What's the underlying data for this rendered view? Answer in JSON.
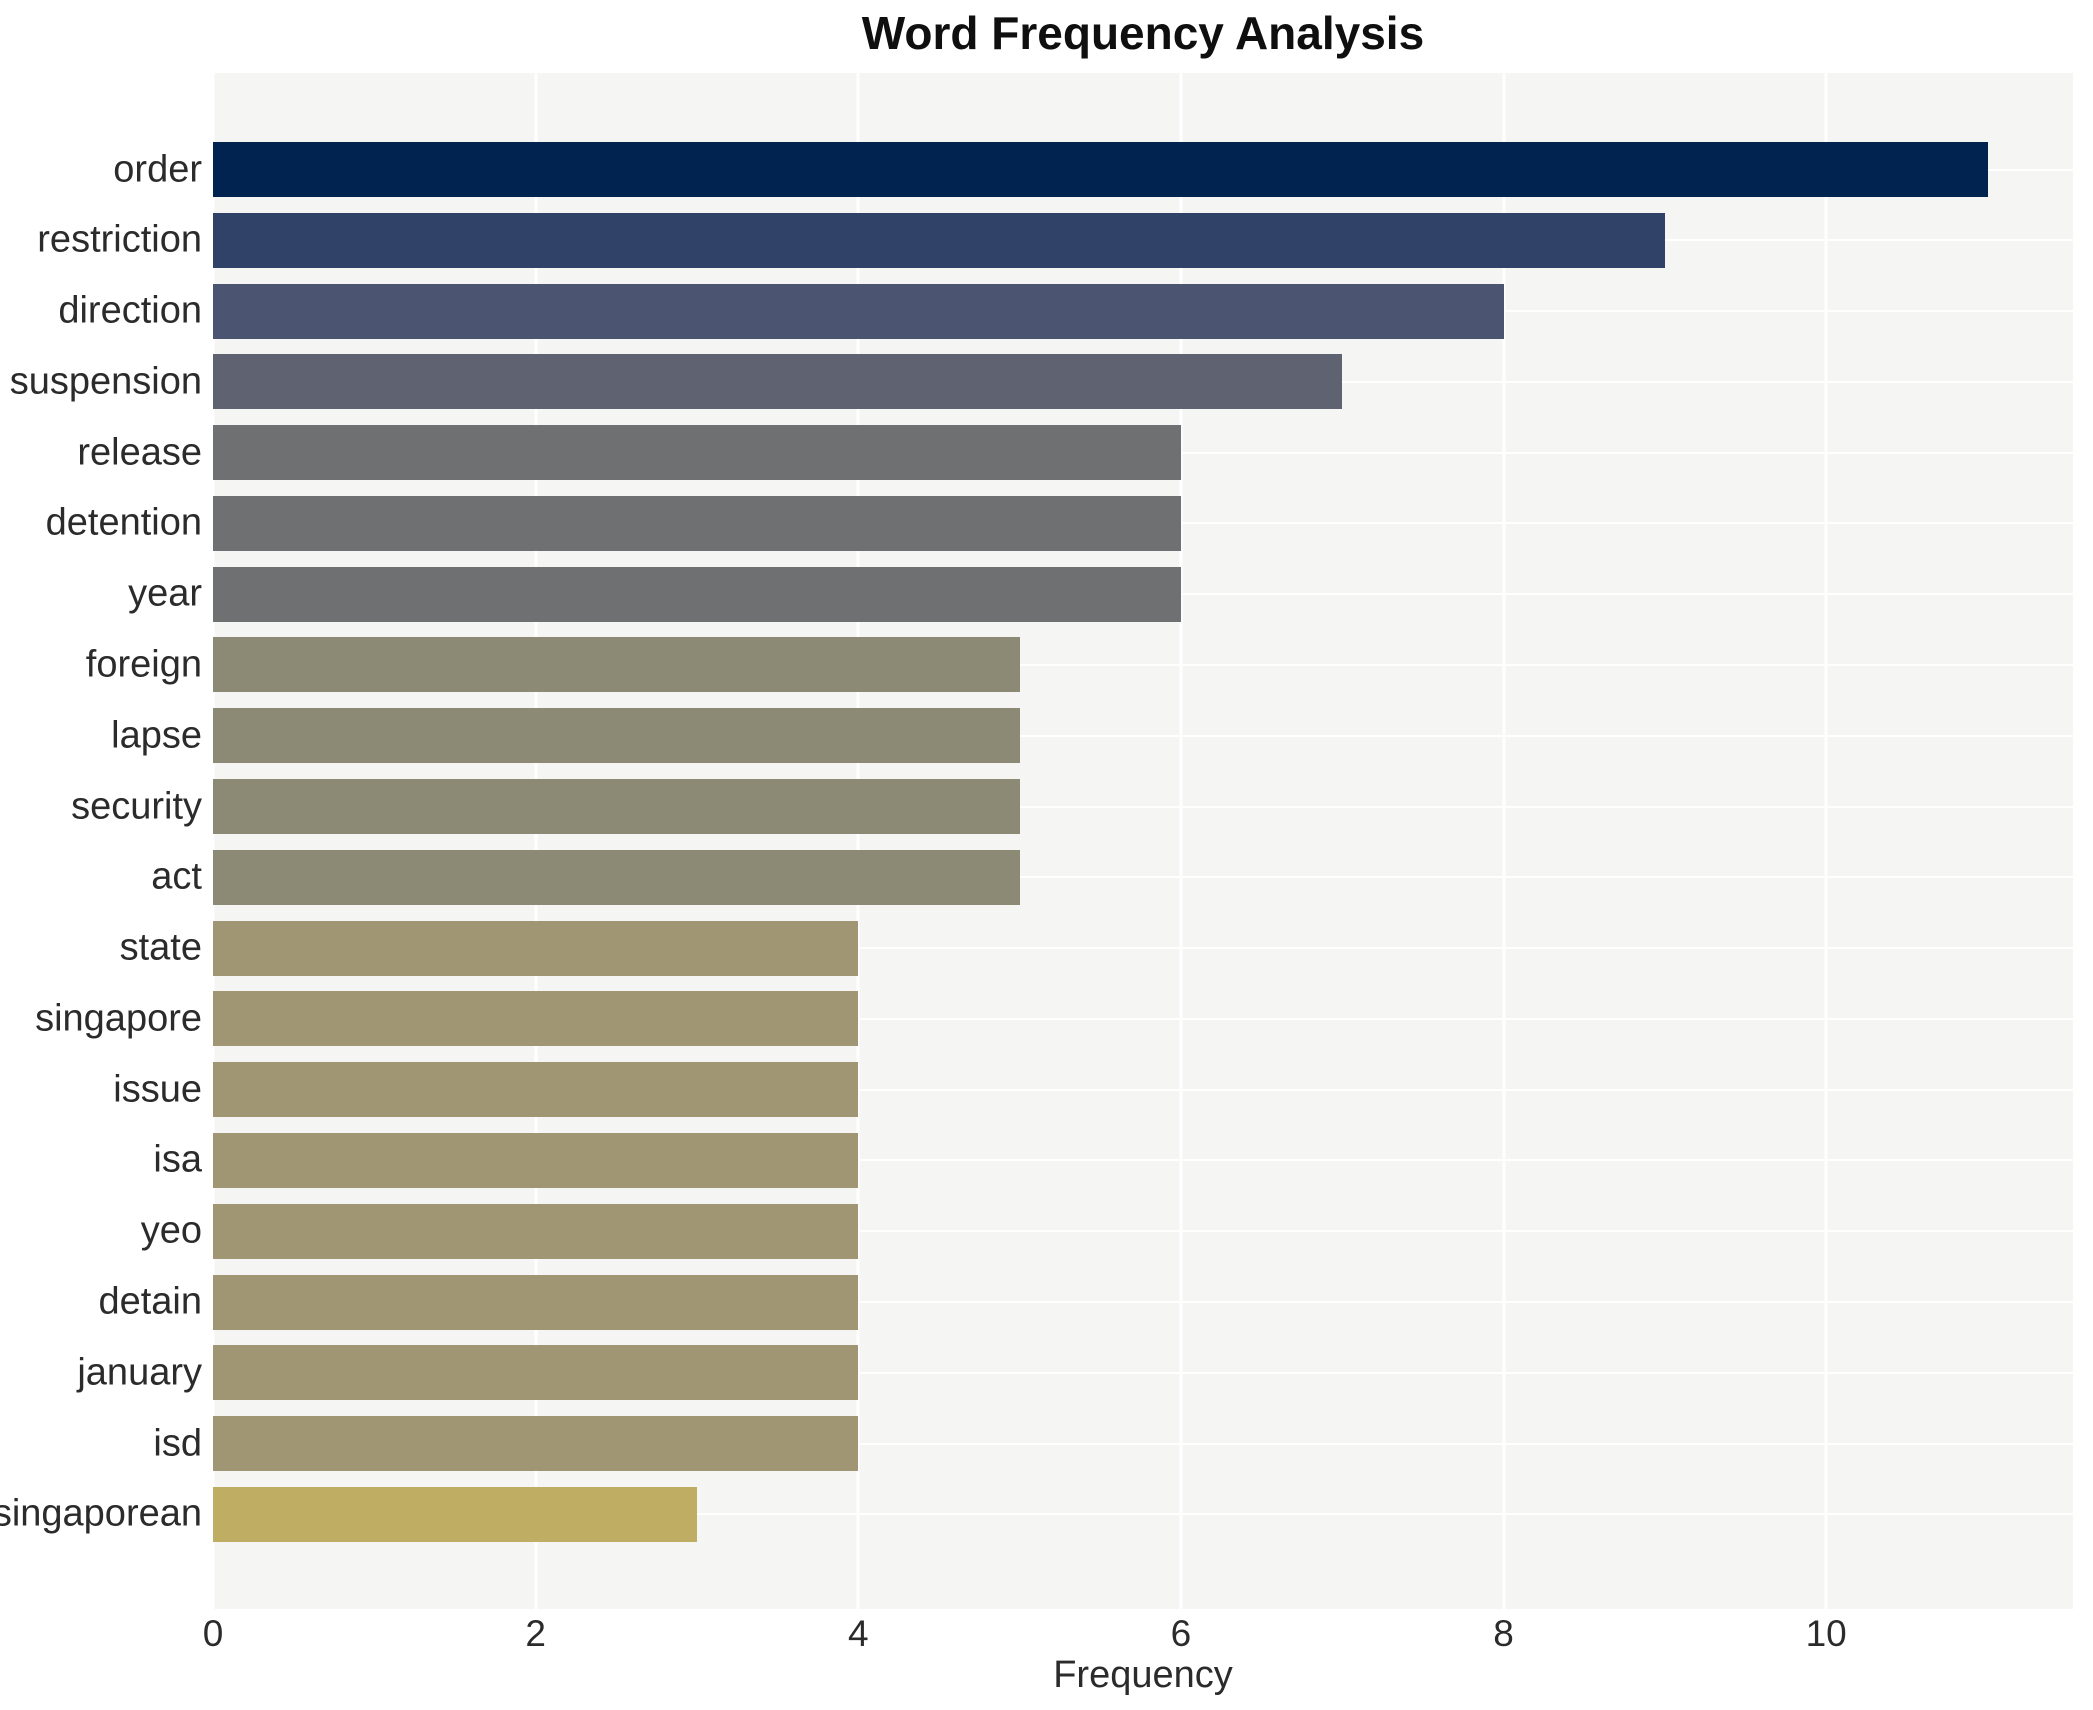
{
  "chart_data": {
    "type": "bar",
    "orientation": "horizontal",
    "title": "Word Frequency Analysis",
    "xlabel": "Frequency",
    "ylabel": "",
    "categories": [
      "order",
      "restriction",
      "direction",
      "suspension",
      "release",
      "detention",
      "year",
      "foreign",
      "lapse",
      "security",
      "act",
      "state",
      "singapore",
      "issue",
      "isa",
      "yeo",
      "detain",
      "january",
      "isd",
      "singaporean"
    ],
    "values": [
      11,
      9,
      8,
      7,
      6,
      6,
      6,
      5,
      5,
      5,
      5,
      4,
      4,
      4,
      4,
      4,
      4,
      4,
      4,
      3
    ],
    "bar_colors": [
      "#00234f",
      "#314269",
      "#4b5470",
      "#5e6271",
      "#6f7072",
      "#6f7072",
      "#6f7072",
      "#8c8974",
      "#8c8974",
      "#8c8974",
      "#8c8974",
      "#a09673",
      "#a09673",
      "#a09673",
      "#a09673",
      "#a09673",
      "#a09673",
      "#a09673",
      "#a09673",
      "#bfad64"
    ],
    "xticks": [
      0,
      2,
      4,
      6,
      8,
      10
    ],
    "xlim": [
      0,
      11.53
    ],
    "grid": true,
    "legend": false,
    "bar_height_fraction": 0.78,
    "plot_background": "#f5f5f4",
    "grid_color": "#ffffff",
    "text_color": "#2b2b2b",
    "title_color": "#0f0f0f"
  }
}
